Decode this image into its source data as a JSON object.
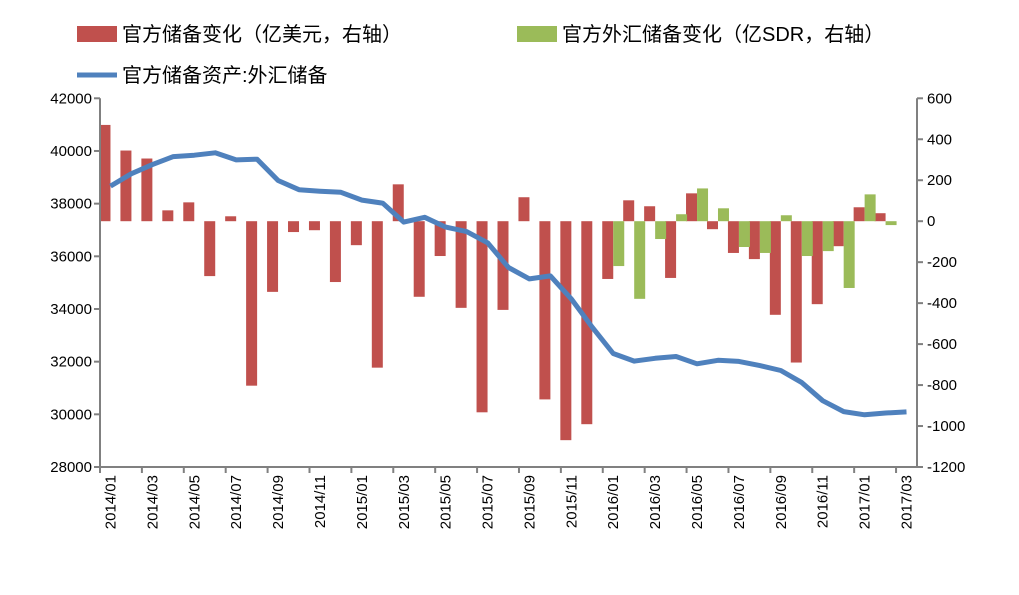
{
  "chart_data": {
    "type": "bar+line",
    "categories": [
      "2014/01",
      "2014/02",
      "2014/03",
      "2014/04",
      "2014/05",
      "2014/06",
      "2014/07",
      "2014/08",
      "2014/09",
      "2014/10",
      "2014/11",
      "2014/12",
      "2015/01",
      "2015/02",
      "2015/03",
      "2015/04",
      "2015/05",
      "2015/06",
      "2015/07",
      "2015/08",
      "2015/09",
      "2015/10",
      "2015/11",
      "2015/12",
      "2016/01",
      "2016/02",
      "2016/03",
      "2016/04",
      "2016/05",
      "2016/06",
      "2016/07",
      "2016/08",
      "2016/09",
      "2016/10",
      "2016/11",
      "2016/12",
      "2017/01",
      "2017/02",
      "2017/03"
    ],
    "xtick_labels": [
      "2014/01",
      "2014/03",
      "2014/05",
      "2014/07",
      "2014/09",
      "2014/11",
      "2015/01",
      "2015/03",
      "2015/05",
      "2015/07",
      "2015/09",
      "2015/11",
      "2016/01",
      "2016/03",
      "2016/05",
      "2016/07",
      "2016/09",
      "2016/11",
      "2017/01",
      "2017/03"
    ],
    "series": [
      {
        "name": "官方储备变化（亿美元，右轴）",
        "type": "bar",
        "axis": "right",
        "color": "#c0504d",
        "values": [
          470,
          345,
          306,
          53,
          92,
          -268,
          24,
          -803,
          -345,
          -53,
          -44,
          -297,
          -117,
          -715,
          180,
          -369,
          -170,
          -423,
          -933,
          -433,
          117,
          -870,
          -1069,
          -991,
          -282,
          102,
          73,
          -277,
          136,
          -39,
          -155,
          -185,
          -457,
          -690,
          -405,
          -122,
          68,
          39,
          null
        ]
      },
      {
        "name": "官方外汇储备变化（亿SDR，右轴）",
        "type": "bar",
        "axis": "right",
        "color": "#9bbb59",
        "values": [
          null,
          null,
          null,
          null,
          null,
          null,
          null,
          null,
          null,
          null,
          null,
          null,
          null,
          null,
          null,
          null,
          null,
          null,
          null,
          null,
          null,
          null,
          null,
          null,
          -219,
          -379,
          -87,
          34,
          160,
          63,
          -126,
          -155,
          29,
          -170,
          -146,
          -326,
          131,
          -19,
          null
        ]
      },
      {
        "name": "官方储备资产:外汇储备",
        "type": "line",
        "axis": "left",
        "color": "#4f81bd",
        "values": [
          38666,
          39137,
          39481,
          39788,
          39838,
          39932,
          39662,
          39688,
          38877,
          38529,
          38473,
          38430,
          38134,
          38015,
          37300,
          37481,
          37111,
          36938,
          36513,
          35574,
          35141,
          35255,
          34383,
          33304,
          32309,
          32023,
          32126,
          32197,
          31917,
          32052,
          32011,
          31852,
          31664,
          31206,
          30516,
          30105,
          29982,
          30051,
          30091
        ]
      }
    ],
    "y_left": {
      "min": 28000,
      "max": 42000,
      "step": 2000,
      "ticks": [
        "42000",
        "40000",
        "38000",
        "36000",
        "34000",
        "32000",
        "30000",
        "28000"
      ]
    },
    "y_right": {
      "min": -1200,
      "max": 600,
      "step": 200,
      "ticks": [
        "600",
        "400",
        "200",
        "0",
        "-200",
        "-400",
        "-600",
        "-800",
        "-1000",
        "-1200"
      ]
    },
    "grid": false,
    "legend_position": "top"
  }
}
